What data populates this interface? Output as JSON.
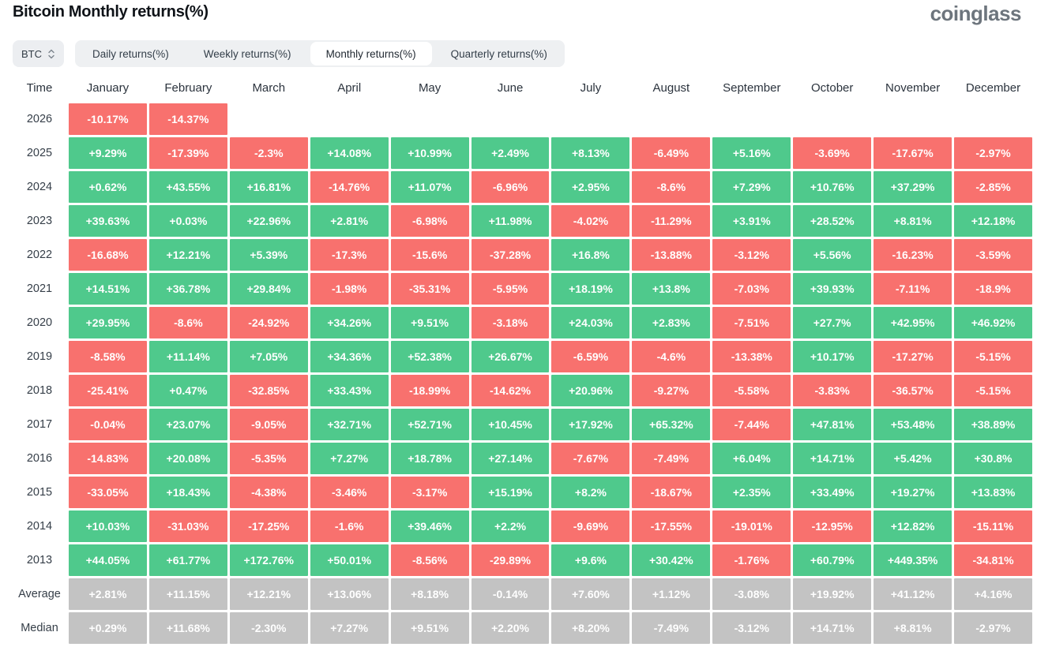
{
  "page": {
    "title": "Bitcoin Monthly returns(%)",
    "logo": "coinglass"
  },
  "controls": {
    "symbol": "BTC",
    "tabs": [
      {
        "label": "Daily returns(%)",
        "active": false
      },
      {
        "label": "Weekly returns(%)",
        "active": false
      },
      {
        "label": "Monthly returns(%)",
        "active": true
      },
      {
        "label": "Quarterly returns(%)",
        "active": false
      }
    ]
  },
  "colors": {
    "positive": "#4fc98c",
    "negative": "#f8716e",
    "summary": "#c3c3c3"
  },
  "table": {
    "columns": [
      "Time",
      "January",
      "February",
      "March",
      "April",
      "May",
      "June",
      "July",
      "August",
      "September",
      "October",
      "November",
      "December"
    ],
    "rows": [
      {
        "label": "2026",
        "type": "year",
        "values": [
          "-10.17%",
          "-14.37%",
          "",
          "",
          "",
          "",
          "",
          "",
          "",
          "",
          "",
          ""
        ]
      },
      {
        "label": "2025",
        "type": "year",
        "values": [
          "+9.29%",
          "-17.39%",
          "-2.3%",
          "+14.08%",
          "+10.99%",
          "+2.49%",
          "+8.13%",
          "-6.49%",
          "+5.16%",
          "-3.69%",
          "-17.67%",
          "-2.97%"
        ]
      },
      {
        "label": "2024",
        "type": "year",
        "values": [
          "+0.62%",
          "+43.55%",
          "+16.81%",
          "-14.76%",
          "+11.07%",
          "-6.96%",
          "+2.95%",
          "-8.6%",
          "+7.29%",
          "+10.76%",
          "+37.29%",
          "-2.85%"
        ]
      },
      {
        "label": "2023",
        "type": "year",
        "values": [
          "+39.63%",
          "+0.03%",
          "+22.96%",
          "+2.81%",
          "-6.98%",
          "+11.98%",
          "-4.02%",
          "-11.29%",
          "+3.91%",
          "+28.52%",
          "+8.81%",
          "+12.18%"
        ]
      },
      {
        "label": "2022",
        "type": "year",
        "values": [
          "-16.68%",
          "+12.21%",
          "+5.39%",
          "-17.3%",
          "-15.6%",
          "-37.28%",
          "+16.8%",
          "-13.88%",
          "-3.12%",
          "+5.56%",
          "-16.23%",
          "-3.59%"
        ]
      },
      {
        "label": "2021",
        "type": "year",
        "values": [
          "+14.51%",
          "+36.78%",
          "+29.84%",
          "-1.98%",
          "-35.31%",
          "-5.95%",
          "+18.19%",
          "+13.8%",
          "-7.03%",
          "+39.93%",
          "-7.11%",
          "-18.9%"
        ]
      },
      {
        "label": "2020",
        "type": "year",
        "values": [
          "+29.95%",
          "-8.6%",
          "-24.92%",
          "+34.26%",
          "+9.51%",
          "-3.18%",
          "+24.03%",
          "+2.83%",
          "-7.51%",
          "+27.7%",
          "+42.95%",
          "+46.92%"
        ]
      },
      {
        "label": "2019",
        "type": "year",
        "values": [
          "-8.58%",
          "+11.14%",
          "+7.05%",
          "+34.36%",
          "+52.38%",
          "+26.67%",
          "-6.59%",
          "-4.6%",
          "-13.38%",
          "+10.17%",
          "-17.27%",
          "-5.15%"
        ]
      },
      {
        "label": "2018",
        "type": "year",
        "values": [
          "-25.41%",
          "+0.47%",
          "-32.85%",
          "+33.43%",
          "-18.99%",
          "-14.62%",
          "+20.96%",
          "-9.27%",
          "-5.58%",
          "-3.83%",
          "-36.57%",
          "-5.15%"
        ]
      },
      {
        "label": "2017",
        "type": "year",
        "values": [
          "-0.04%",
          "+23.07%",
          "-9.05%",
          "+32.71%",
          "+52.71%",
          "+10.45%",
          "+17.92%",
          "+65.32%",
          "-7.44%",
          "+47.81%",
          "+53.48%",
          "+38.89%"
        ]
      },
      {
        "label": "2016",
        "type": "year",
        "values": [
          "-14.83%",
          "+20.08%",
          "-5.35%",
          "+7.27%",
          "+18.78%",
          "+27.14%",
          "-7.67%",
          "-7.49%",
          "+6.04%",
          "+14.71%",
          "+5.42%",
          "+30.8%"
        ]
      },
      {
        "label": "2015",
        "type": "year",
        "values": [
          "-33.05%",
          "+18.43%",
          "-4.38%",
          "-3.46%",
          "-3.17%",
          "+15.19%",
          "+8.2%",
          "-18.67%",
          "+2.35%",
          "+33.49%",
          "+19.27%",
          "+13.83%"
        ]
      },
      {
        "label": "2014",
        "type": "year",
        "values": [
          "+10.03%",
          "-31.03%",
          "-17.25%",
          "-1.6%",
          "+39.46%",
          "+2.2%",
          "-9.69%",
          "-17.55%",
          "-19.01%",
          "-12.95%",
          "+12.82%",
          "-15.11%"
        ]
      },
      {
        "label": "2013",
        "type": "year",
        "values": [
          "+44.05%",
          "+61.77%",
          "+172.76%",
          "+50.01%",
          "-8.56%",
          "-29.89%",
          "+9.6%",
          "+30.42%",
          "-1.76%",
          "+60.79%",
          "+449.35%",
          "-34.81%"
        ]
      },
      {
        "label": "Average",
        "type": "summary",
        "values": [
          "+2.81%",
          "+11.15%",
          "+12.21%",
          "+13.06%",
          "+8.18%",
          "-0.14%",
          "+7.60%",
          "+1.12%",
          "-3.08%",
          "+19.92%",
          "+41.12%",
          "+4.16%"
        ]
      },
      {
        "label": "Median",
        "type": "summary",
        "values": [
          "+0.29%",
          "+11.68%",
          "-2.30%",
          "+7.27%",
          "+9.51%",
          "+2.20%",
          "+8.20%",
          "-7.49%",
          "-3.12%",
          "+14.71%",
          "+8.81%",
          "-2.97%"
        ]
      }
    ]
  }
}
